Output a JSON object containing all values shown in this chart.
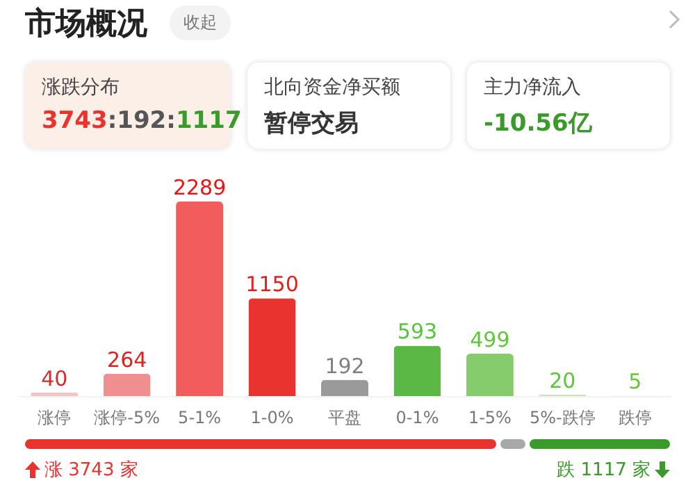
{
  "chart_data": {
    "type": "bar",
    "title": "市场概况",
    "categories": [
      "涨停",
      "涨停-5%",
      "5-1%",
      "1-0%",
      "平盘",
      "0-1%",
      "1-5%",
      "5%-跌停",
      "跌停"
    ],
    "values": [
      40,
      264,
      2289,
      1150,
      192,
      593,
      499,
      20,
      5
    ],
    "colors": [
      "#f2c4c4",
      "#f08f8f",
      "#f25c5c",
      "#e8332f",
      "#9a9a9a",
      "#5bb845",
      "#86cc6c",
      "#c9e4c0",
      "#e3f0dc"
    ],
    "data_labels": true,
    "annotations": [
      "收起",
      "涨跌分布",
      "3743:192:1117",
      "北向资金净买额",
      "暂停交易",
      "主力净流入",
      "-10.56亿",
      "涨 3743 家",
      "跌 1117 家"
    ]
  }
}
